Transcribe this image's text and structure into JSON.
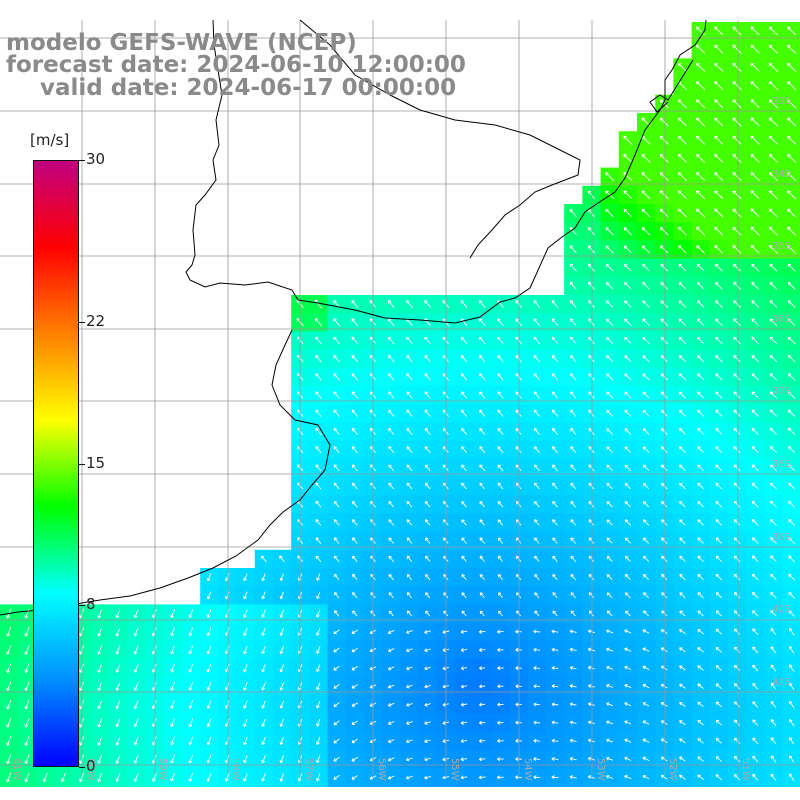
{
  "title": {
    "model": "modelo GEFS-WAVE (NCEP)",
    "forecast": "forecast date: 2024-06-10 12:00:00",
    "valid": "valid date: 2024-06-17 00:00:00"
  },
  "colorbar": {
    "unit": "[m/s]",
    "ticks": [
      "30",
      "22",
      "15",
      "8",
      "0"
    ],
    "tick_values": [
      30,
      22,
      15,
      8,
      0
    ],
    "min": 0,
    "max": 30,
    "colors": [
      "#0000ff",
      "#0090ff",
      "#00ffff",
      "#00ff00",
      "#ffff00",
      "#ff8000",
      "#ff0000",
      "#c00080"
    ]
  },
  "map": {
    "field": "wind speed with direction arrows",
    "lat_labels": [
      "33S",
      "34S",
      "35S",
      "36S",
      "37S",
      "38S",
      "39S",
      "40S",
      "41S"
    ],
    "lon_labels": [
      "61W",
      "60W",
      "59W",
      "58W",
      "57W",
      "56W",
      "55W",
      "54W",
      "53W",
      "52W",
      "51W"
    ],
    "land_color": "#ffffff",
    "grid_color": "#999999",
    "coast_color": "#000000",
    "arrow_color": "#ffffff"
  }
}
